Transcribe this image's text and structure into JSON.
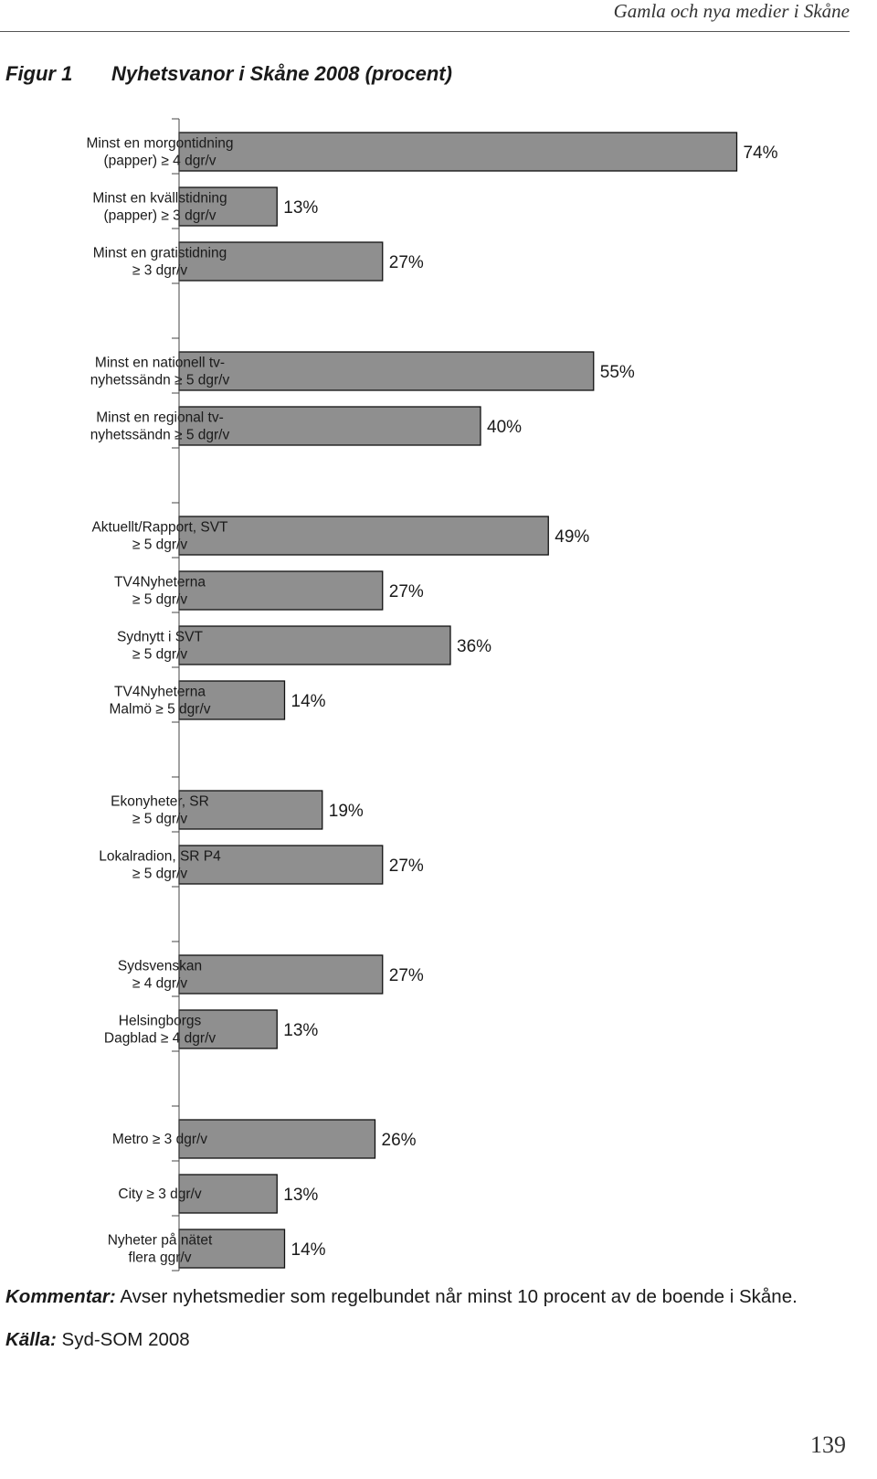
{
  "running_head": "Gamla och nya medier i Skåne",
  "figure": {
    "label": "Figur 1",
    "title": "Nyhetsvanor i Skåne 2008 (procent)"
  },
  "chart_data": {
    "type": "bar",
    "orientation": "horizontal",
    "unit": "%",
    "grid": false,
    "groups": [
      {
        "items": [
          {
            "label": [
              "Minst en morgontidning",
              "(papper) ≥ 4 dgr/v"
            ],
            "value": 74,
            "value_label": "74%"
          },
          {
            "label": [
              "Minst en kvällstidning",
              "(papper) ≥ 3 dgr/v"
            ],
            "value": 13,
            "value_label": "13%"
          },
          {
            "label": [
              "Minst en gratistidning",
              "≥ 3 dgr/v"
            ],
            "value": 27,
            "value_label": "27%"
          }
        ]
      },
      {
        "items": [
          {
            "label": [
              "Minst en nationell tv-",
              "nyhetssändn ≥ 5 dgr/v"
            ],
            "value": 55,
            "value_label": "55%"
          },
          {
            "label": [
              "Minst en regional tv-",
              "nyhetssändn ≥ 5 dgr/v"
            ],
            "value": 40,
            "value_label": "40%"
          }
        ]
      },
      {
        "items": [
          {
            "label": [
              "Aktuellt/Rapport, SVT",
              "≥ 5 dgr/v"
            ],
            "value": 49,
            "value_label": "49%"
          },
          {
            "label": [
              "TV4Nyheterna",
              "≥ 5 dgr/v"
            ],
            "value": 27,
            "value_label": "27%"
          },
          {
            "label": [
              "Sydnytt i SVT",
              "≥ 5 dgr/v"
            ],
            "value": 36,
            "value_label": "36%"
          },
          {
            "label": [
              "TV4Nyheterna",
              "Malmö ≥ 5 dgr/v"
            ],
            "value": 14,
            "value_label": "14%"
          }
        ]
      },
      {
        "items": [
          {
            "label": [
              "Ekonyheter, SR",
              "≥ 5 dgr/v"
            ],
            "value": 19,
            "value_label": "19%"
          },
          {
            "label": [
              "Lokalradion, SR P4",
              "≥ 5 dgr/v"
            ],
            "value": 27,
            "value_label": "27%"
          }
        ]
      },
      {
        "items": [
          {
            "label": [
              "Sydsvenskan",
              "≥ 4 dgr/v"
            ],
            "value": 27,
            "value_label": "27%"
          },
          {
            "label": [
              "Helsingborgs",
              "Dagblad ≥ 4 dgr/v"
            ],
            "value": 13,
            "value_label": "13%"
          }
        ]
      },
      {
        "items": [
          {
            "label": [
              "Metro ≥ 3 dgr/v"
            ],
            "value": 26,
            "value_label": "26%"
          },
          {
            "label": [
              "City ≥ 3 dgr/v"
            ],
            "value": 13,
            "value_label": "13%"
          },
          {
            "label": [
              "Nyheter på nätet",
              "flera ggr/v"
            ],
            "value": 14,
            "value_label": "14%"
          }
        ]
      }
    ],
    "colors": {
      "bar_fill": "#8f8f8f",
      "bar_stroke": "#111111"
    }
  },
  "comment": {
    "lead": "Kommentar:",
    "text": " Avser nyhetsmedier som regelbundet når minst 10 procent av de boende i Skåne."
  },
  "source": {
    "lead": "Källa:",
    "text": " Syd-SOM 2008"
  },
  "page_number": "139"
}
